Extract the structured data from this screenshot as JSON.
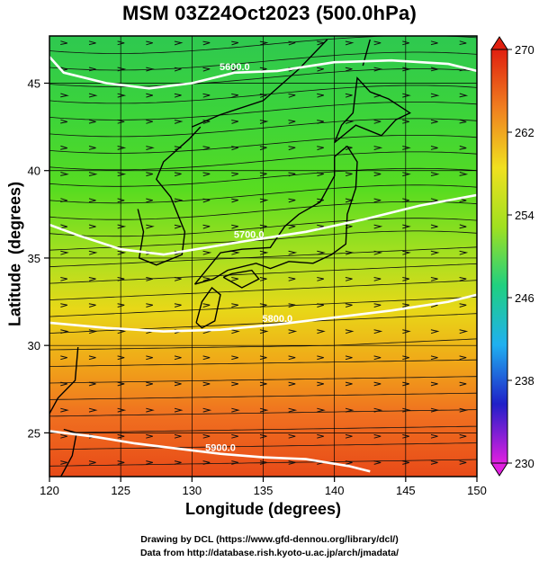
{
  "title": "MSM 03Z24Oct2023 (500.0hPa)",
  "x_axis": {
    "label": "Longitude (degrees)",
    "range": [
      120,
      150
    ],
    "ticks": [
      120,
      125,
      130,
      135,
      140,
      145,
      150
    ]
  },
  "y_axis": {
    "label": "Latitude  (degrees)",
    "range": [
      22.5,
      47.7
    ],
    "ticks": [
      25,
      30,
      35,
      40,
      45
    ]
  },
  "colorbar": {
    "range": [
      230,
      270
    ],
    "ticks": [
      230,
      238,
      246,
      254,
      262,
      270
    ],
    "colors": [
      "#e020e0",
      "#2020c8",
      "#20b0f0",
      "#20d080",
      "#a0e020",
      "#f0e020",
      "#f08020",
      "#e02010"
    ]
  },
  "contours": [
    {
      "label": "5600.0",
      "points": [
        [
          120,
          46.5
        ],
        [
          121,
          45.6
        ],
        [
          124,
          45.0
        ],
        [
          127,
          44.7
        ],
        [
          130,
          45.0
        ],
        [
          133,
          45.6
        ],
        [
          136,
          45.7
        ],
        [
          140,
          46.2
        ],
        [
          144,
          46.3
        ],
        [
          148,
          46.1
        ],
        [
          150,
          45.7
        ]
      ]
    },
    {
      "label": "5700.0",
      "points": [
        [
          120,
          36.9
        ],
        [
          122,
          36.3
        ],
        [
          125,
          35.5
        ],
        [
          128,
          35.2
        ],
        [
          131,
          35.6
        ],
        [
          134,
          36.0
        ],
        [
          138,
          36.5
        ],
        [
          142,
          37.2
        ],
        [
          146,
          38.0
        ],
        [
          150,
          38.6
        ]
      ]
    },
    {
      "label": "5800.0",
      "points": [
        [
          120,
          31.3
        ],
        [
          124,
          31.0
        ],
        [
          128,
          30.8
        ],
        [
          132,
          30.9
        ],
        [
          136,
          31.2
        ],
        [
          140,
          31.6
        ],
        [
          144,
          32.0
        ],
        [
          148,
          32.5
        ],
        [
          150,
          32.9
        ]
      ]
    },
    {
      "label": "5900.0",
      "points": [
        [
          120,
          25.1
        ],
        [
          123,
          24.8
        ],
        [
          126,
          24.4
        ],
        [
          129,
          24.1
        ],
        [
          132,
          23.8
        ],
        [
          135,
          23.6
        ],
        [
          138,
          23.5
        ],
        [
          141,
          23.1
        ],
        [
          142.5,
          22.8
        ]
      ]
    }
  ],
  "credits": {
    "line1": "Drawing by DCL (https://www.gfd-dennou.org/library/dcl/)",
    "line2": "Data from http://database.rish.kyoto-u.ac.jp/arch/jmadata/"
  }
}
